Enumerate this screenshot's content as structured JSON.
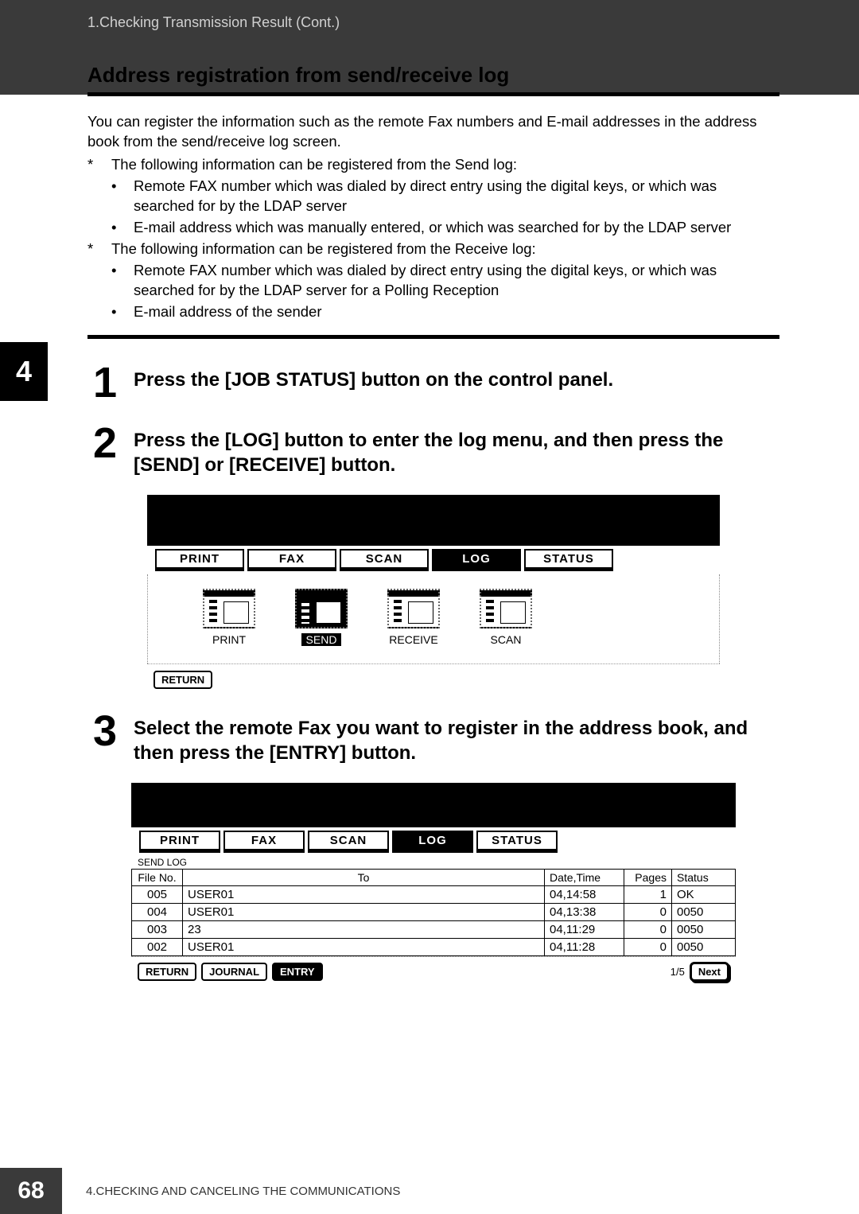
{
  "header": {
    "breadcrumb": "1.Checking Transmission Result (Cont.)"
  },
  "chapter_tab": "4",
  "section": {
    "title": "Address registration from send/receive log",
    "intro": "You can register the information such as the remote Fax numbers and E-mail addresses in the address book from the send/receive log screen.",
    "bullets": [
      {
        "text": "The following information can be registered from the Send log:",
        "sub": [
          "Remote FAX number which was dialed by direct entry using the digital keys, or which was searched for by the LDAP server",
          "E-mail address which was manually entered, or which was searched for by the LDAP server"
        ]
      },
      {
        "text": "The following information can be registered from the Receive log:",
        "sub": [
          "Remote FAX number which was dialed by direct entry using the digital keys, or which was searched for by the LDAP server for a Polling Reception",
          "E-mail address of the sender"
        ]
      }
    ]
  },
  "steps": [
    {
      "num": "1",
      "text": "Press the [JOB STATUS] button on the control panel."
    },
    {
      "num": "2",
      "text": "Press the [LOG] button to enter the log menu, and then press the [SEND] or [RECEIVE] button."
    },
    {
      "num": "3",
      "text": "Select the remote Fax you want to register in the address book, and then press the [ENTRY] button."
    }
  ],
  "shot1": {
    "tabs": [
      "PRINT",
      "FAX",
      "SCAN",
      "LOG",
      "STATUS"
    ],
    "active_tab_index": 3,
    "tab_widths": [
      112,
      112,
      112,
      112,
      112
    ],
    "icons": [
      "PRINT",
      "SEND",
      "RECEIVE",
      "SCAN"
    ],
    "active_icon_index": 1,
    "return_label": "RETURN"
  },
  "shot2": {
    "tabs": [
      "PRINT",
      "FAX",
      "SCAN",
      "LOG",
      "STATUS"
    ],
    "active_tab_index": 3,
    "tab_widths": [
      104,
      104,
      104,
      104,
      104
    ],
    "subheader": "SEND LOG",
    "columns": [
      "File No.",
      "To",
      "Date,Time",
      "Pages",
      "Status"
    ],
    "rows": [
      [
        "005",
        "USER01",
        "04,14:58",
        "1",
        "OK"
      ],
      [
        "004",
        "USER01",
        "04,13:38",
        "0",
        "0050"
      ],
      [
        "003",
        "23",
        "04,11:29",
        "0",
        "0050"
      ],
      [
        "002",
        "USER01",
        "04,11:28",
        "0",
        "0050"
      ]
    ],
    "buttons": {
      "return": "RETURN",
      "journal": "JOURNAL",
      "entry": "ENTRY",
      "next": "Next"
    },
    "page_indicator": "1/5"
  },
  "footer": {
    "page": "68",
    "chapter": "4.CHECKING AND CANCELING THE COMMUNICATIONS"
  },
  "colors": {
    "header_bg": "#3a3a3a",
    "header_text": "#d0d0d0",
    "rule": "#000000"
  }
}
